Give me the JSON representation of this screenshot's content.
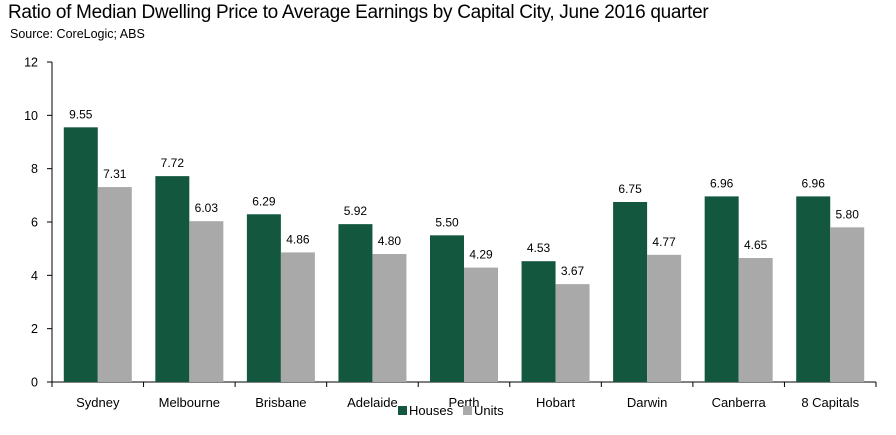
{
  "title": "Ratio of Median Dwelling Price to Average Earnings by Capital City, June 2016 quarter",
  "subtitle": "Source: CoreLogic; ABS",
  "chart_data": {
    "type": "bar",
    "title": "Ratio of Median Dwelling Price to Average Earnings by Capital City, June 2016 quarter",
    "subtitle": "Source: CoreLogic; ABS",
    "xlabel": "",
    "ylabel": "",
    "ylim": [
      0,
      12
    ],
    "yticks": [
      0,
      2,
      4,
      6,
      8,
      10,
      12
    ],
    "grid": false,
    "legend_position": "bottom",
    "categories": [
      "Sydney",
      "Melbourne",
      "Brisbane",
      "Adelaide",
      "Perth",
      "Hobart",
      "Darwin",
      "Canberra",
      "8 Capitals"
    ],
    "series": [
      {
        "name": "Houses",
        "color": "#12573E",
        "values": [
          9.55,
          7.72,
          6.29,
          5.92,
          5.5,
          4.53,
          6.75,
          6.96,
          6.96
        ],
        "labels": [
          "9.55",
          "7.72",
          "6.29",
          "5.92",
          "5.50",
          "4.53",
          "6.75",
          "6.96",
          "6.96"
        ]
      },
      {
        "name": "Units",
        "color": "#A9A9A9",
        "values": [
          7.31,
          6.03,
          4.86,
          4.8,
          4.29,
          3.67,
          4.77,
          4.65,
          5.8
        ],
        "labels": [
          "7.31",
          "6.03",
          "4.86",
          "4.80",
          "4.29",
          "3.67",
          "4.77",
          "4.65",
          "5.80"
        ]
      }
    ]
  }
}
